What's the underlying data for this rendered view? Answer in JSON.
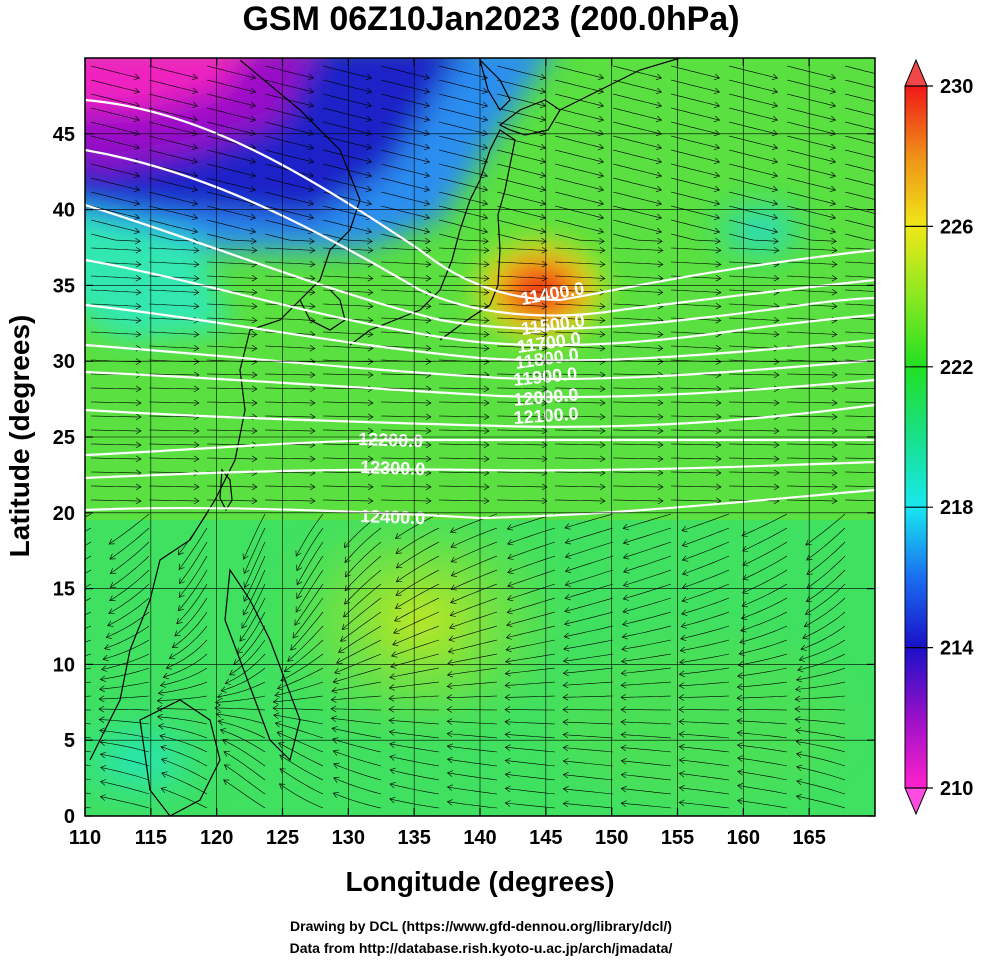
{
  "title": "GSM 06Z10Jan2023 (200.0hPa)",
  "xlabel": "Longitude (degrees)",
  "ylabel": "Latitude  (degrees)",
  "credits": {
    "line1": "Drawing by DCL (https://www.gfd-dennou.org/library/dcl/)",
    "line2": "Data from http://database.rish.kyoto-u.ac.jp/arch/jmadata/"
  },
  "map": {
    "lon_range": [
      110,
      170
    ],
    "lat_range": [
      0,
      50
    ],
    "lon_ticks": [
      "110",
      "115",
      "120",
      "125",
      "130",
      "135",
      "140",
      "145",
      "150",
      "155",
      "160",
      "165"
    ],
    "lat_ticks": [
      "0",
      "5",
      "10",
      "15",
      "20",
      "25",
      "30",
      "35",
      "40",
      "45"
    ]
  },
  "colorbar": {
    "min": 210,
    "max": 230,
    "tick_labels": [
      "210",
      "214",
      "218",
      "222",
      "226",
      "230"
    ],
    "colors": [
      "#ff22cc",
      "#9a10c8",
      "#1a10c8",
      "#1a6ef0",
      "#18e8f0",
      "#18e08a",
      "#22e022",
      "#8ae822",
      "#f0e818",
      "#f09018",
      "#f01818"
    ]
  },
  "contour_labels": [
    {
      "text": "11400.0"
    },
    {
      "text": "11500.0"
    },
    {
      "text": "11700.0"
    },
    {
      "text": "11800.0"
    },
    {
      "text": "11900.0"
    },
    {
      "text": "12000.0"
    },
    {
      "text": "12100.0"
    },
    {
      "text": "12200.0"
    },
    {
      "text": "12300.0"
    },
    {
      "text": "12400.0"
    }
  ]
}
